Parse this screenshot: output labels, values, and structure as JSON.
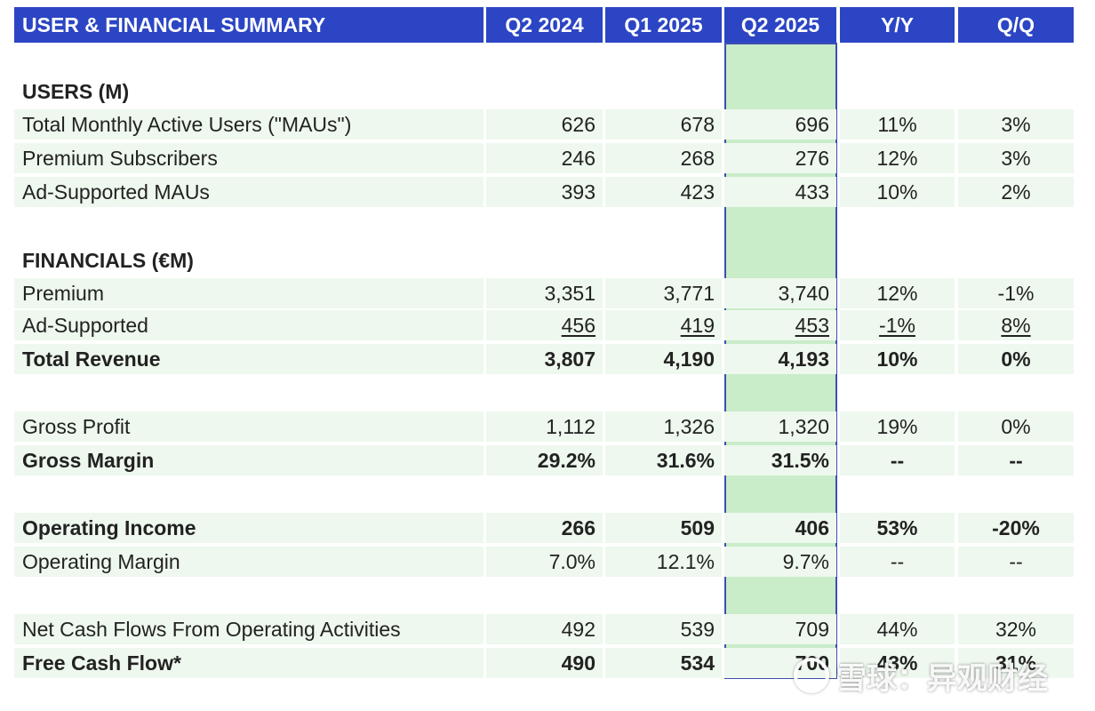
{
  "header": {
    "title": "USER & FINANCIAL SUMMARY",
    "columns": [
      "Q2 2024",
      "Q1 2025",
      "Q2 2025",
      "Y/Y",
      "Q/Q"
    ]
  },
  "sections": {
    "users": "USERS (M)",
    "financials": "FINANCIALS (€M)"
  },
  "rows": [
    {
      "label": "Total Monthly Active Users (\"MAUs\")",
      "values": [
        "626",
        "678",
        "696",
        "11%",
        "3%"
      ]
    },
    {
      "label": "Premium Subscribers",
      "values": [
        "246",
        "268",
        "276",
        "12%",
        "3%"
      ]
    },
    {
      "label": "Ad-Supported MAUs",
      "values": [
        "393",
        "423",
        "433",
        "10%",
        "2%"
      ]
    },
    {
      "label": "Premium",
      "values": [
        "3,351",
        "3,771",
        "3,740",
        "12%",
        "-1%"
      ]
    },
    {
      "label": "Ad-Supported",
      "values": [
        "456",
        "419",
        "453",
        "-1%",
        "8%"
      ]
    },
    {
      "label": "Total Revenue",
      "values": [
        "3,807",
        "4,190",
        "4,193",
        "10%",
        "0%"
      ]
    },
    {
      "label": "Gross Profit",
      "values": [
        "1,112",
        "1,326",
        "1,320",
        "19%",
        "0%"
      ]
    },
    {
      "label": "Gross Margin",
      "values": [
        "29.2%",
        "31.6%",
        "31.5%",
        "--",
        "--"
      ]
    },
    {
      "label": "Operating Income",
      "values": [
        "266",
        "509",
        "406",
        "53%",
        "-20%"
      ]
    },
    {
      "label": "Operating Margin",
      "values": [
        "7.0%",
        "12.1%",
        "9.7%",
        "--",
        "--"
      ]
    },
    {
      "label": "Net Cash Flows From Operating Activities",
      "values": [
        "492",
        "539",
        "709",
        "44%",
        "32%"
      ]
    },
    {
      "label": "Free Cash Flow*",
      "values": [
        "490",
        "534",
        "700",
        "43%",
        "31%"
      ]
    }
  ],
  "watermark": "雪球：异观财经"
}
